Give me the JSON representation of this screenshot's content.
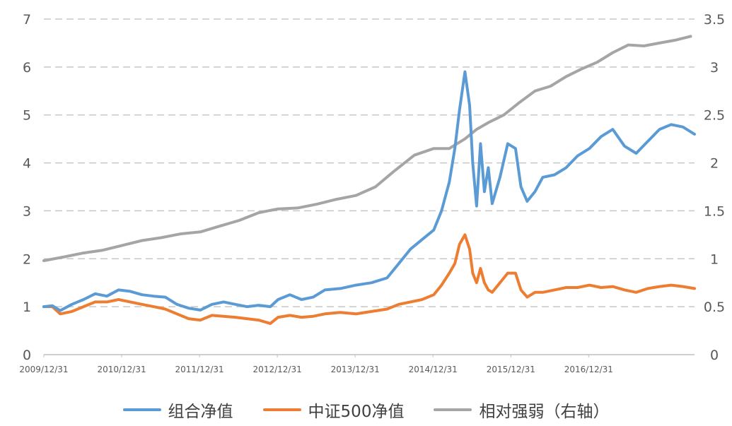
{
  "chart_data": {
    "type": "line",
    "x_tick_labels": [
      "2009/12/31",
      "2010/12/31",
      "2011/12/31",
      "2012/12/31",
      "2013/12/31",
      "2014/12/31",
      "2015/12/31",
      "2016/12/31"
    ],
    "y_left": {
      "min": 0,
      "max": 7,
      "ticks": [
        "0",
        "1",
        "2",
        "3",
        "4",
        "5",
        "6",
        "7"
      ]
    },
    "y_right": {
      "min": 0,
      "max": 3.5,
      "ticks": [
        "0",
        "0.5",
        "1",
        "1.5",
        "2",
        "2.5",
        "3",
        "3.5"
      ]
    },
    "grid": "horizontal dashed",
    "legend_position": "bottom",
    "series": [
      {
        "name": "组合净值",
        "axis": "left",
        "color": "#5B9BD5",
        "points": [
          [
            2009.99,
            1.0
          ],
          [
            2010.1,
            1.02
          ],
          [
            2010.2,
            0.92
          ],
          [
            2010.35,
            1.05
          ],
          [
            2010.5,
            1.15
          ],
          [
            2010.65,
            1.27
          ],
          [
            2010.8,
            1.22
          ],
          [
            2010.95,
            1.35
          ],
          [
            2011.1,
            1.32
          ],
          [
            2011.25,
            1.25
          ],
          [
            2011.4,
            1.22
          ],
          [
            2011.55,
            1.2
          ],
          [
            2011.7,
            1.05
          ],
          [
            2011.85,
            0.97
          ],
          [
            2012.0,
            0.93
          ],
          [
            2012.15,
            1.05
          ],
          [
            2012.3,
            1.1
          ],
          [
            2012.45,
            1.05
          ],
          [
            2012.6,
            1.0
          ],
          [
            2012.75,
            1.03
          ],
          [
            2012.9,
            1.0
          ],
          [
            2013.0,
            1.15
          ],
          [
            2013.15,
            1.25
          ],
          [
            2013.3,
            1.15
          ],
          [
            2013.45,
            1.2
          ],
          [
            2013.6,
            1.35
          ],
          [
            2013.8,
            1.38
          ],
          [
            2014.0,
            1.45
          ],
          [
            2014.2,
            1.5
          ],
          [
            2014.4,
            1.6
          ],
          [
            2014.55,
            1.9
          ],
          [
            2014.7,
            2.2
          ],
          [
            2014.85,
            2.4
          ],
          [
            2015.0,
            2.6
          ],
          [
            2015.1,
            3.0
          ],
          [
            2015.2,
            3.6
          ],
          [
            2015.27,
            4.3
          ],
          [
            2015.33,
            5.1
          ],
          [
            2015.4,
            5.9
          ],
          [
            2015.46,
            5.2
          ],
          [
            2015.5,
            4.0
          ],
          [
            2015.55,
            3.1
          ],
          [
            2015.6,
            4.4
          ],
          [
            2015.65,
            3.4
          ],
          [
            2015.7,
            3.9
          ],
          [
            2015.75,
            3.15
          ],
          [
            2015.85,
            3.7
          ],
          [
            2015.95,
            4.4
          ],
          [
            2016.05,
            4.3
          ],
          [
            2016.12,
            3.5
          ],
          [
            2016.2,
            3.2
          ],
          [
            2016.3,
            3.4
          ],
          [
            2016.4,
            3.7
          ],
          [
            2016.55,
            3.75
          ],
          [
            2016.7,
            3.9
          ],
          [
            2016.85,
            4.15
          ],
          [
            2017.0,
            4.3
          ],
          [
            2017.15,
            4.55
          ],
          [
            2017.3,
            4.7
          ],
          [
            2017.45,
            4.35
          ],
          [
            2017.6,
            4.2
          ],
          [
            2017.75,
            4.45
          ],
          [
            2017.9,
            4.7
          ],
          [
            2018.05,
            4.8
          ],
          [
            2018.2,
            4.75
          ],
          [
            2018.35,
            4.6
          ]
        ]
      },
      {
        "name": "中证500净值",
        "axis": "left",
        "color": "#ED7D31",
        "points": [
          [
            2009.99,
            1.0
          ],
          [
            2010.1,
            1.0
          ],
          [
            2010.2,
            0.85
          ],
          [
            2010.35,
            0.9
          ],
          [
            2010.5,
            1.0
          ],
          [
            2010.65,
            1.1
          ],
          [
            2010.8,
            1.1
          ],
          [
            2010.95,
            1.15
          ],
          [
            2011.1,
            1.1
          ],
          [
            2011.25,
            1.05
          ],
          [
            2011.4,
            1.0
          ],
          [
            2011.55,
            0.95
          ],
          [
            2011.7,
            0.85
          ],
          [
            2011.85,
            0.75
          ],
          [
            2012.0,
            0.72
          ],
          [
            2012.15,
            0.82
          ],
          [
            2012.3,
            0.8
          ],
          [
            2012.45,
            0.78
          ],
          [
            2012.6,
            0.75
          ],
          [
            2012.75,
            0.72
          ],
          [
            2012.9,
            0.65
          ],
          [
            2013.0,
            0.78
          ],
          [
            2013.15,
            0.82
          ],
          [
            2013.3,
            0.78
          ],
          [
            2013.45,
            0.8
          ],
          [
            2013.6,
            0.85
          ],
          [
            2013.8,
            0.88
          ],
          [
            2014.0,
            0.85
          ],
          [
            2014.2,
            0.9
          ],
          [
            2014.4,
            0.95
          ],
          [
            2014.55,
            1.05
          ],
          [
            2014.7,
            1.1
          ],
          [
            2014.85,
            1.15
          ],
          [
            2015.0,
            1.25
          ],
          [
            2015.1,
            1.45
          ],
          [
            2015.2,
            1.7
          ],
          [
            2015.27,
            1.9
          ],
          [
            2015.33,
            2.3
          ],
          [
            2015.4,
            2.5
          ],
          [
            2015.46,
            2.2
          ],
          [
            2015.5,
            1.7
          ],
          [
            2015.55,
            1.5
          ],
          [
            2015.6,
            1.8
          ],
          [
            2015.65,
            1.5
          ],
          [
            2015.7,
            1.35
          ],
          [
            2015.75,
            1.3
          ],
          [
            2015.85,
            1.5
          ],
          [
            2015.95,
            1.7
          ],
          [
            2016.05,
            1.7
          ],
          [
            2016.12,
            1.35
          ],
          [
            2016.2,
            1.2
          ],
          [
            2016.3,
            1.3
          ],
          [
            2016.4,
            1.3
          ],
          [
            2016.55,
            1.35
          ],
          [
            2016.7,
            1.4
          ],
          [
            2016.85,
            1.4
          ],
          [
            2017.0,
            1.45
          ],
          [
            2017.15,
            1.4
          ],
          [
            2017.3,
            1.42
          ],
          [
            2017.45,
            1.35
          ],
          [
            2017.6,
            1.3
          ],
          [
            2017.75,
            1.38
          ],
          [
            2017.9,
            1.42
          ],
          [
            2018.05,
            1.45
          ],
          [
            2018.2,
            1.42
          ],
          [
            2018.35,
            1.38
          ]
        ]
      },
      {
        "name": "相对强弱（右轴）",
        "axis": "right",
        "color": "#A5A5A5",
        "points": [
          [
            2009.99,
            0.98
          ],
          [
            2010.25,
            1.02
          ],
          [
            2010.5,
            1.06
          ],
          [
            2010.75,
            1.09
          ],
          [
            2011.0,
            1.14
          ],
          [
            2011.25,
            1.19
          ],
          [
            2011.5,
            1.22
          ],
          [
            2011.75,
            1.26
          ],
          [
            2012.0,
            1.28
          ],
          [
            2012.25,
            1.34
          ],
          [
            2012.5,
            1.4
          ],
          [
            2012.75,
            1.48
          ],
          [
            2013.0,
            1.52
          ],
          [
            2013.25,
            1.53
          ],
          [
            2013.5,
            1.57
          ],
          [
            2013.75,
            1.62
          ],
          [
            2014.0,
            1.66
          ],
          [
            2014.25,
            1.75
          ],
          [
            2014.5,
            1.92
          ],
          [
            2014.75,
            2.08
          ],
          [
            2015.0,
            2.15
          ],
          [
            2015.2,
            2.15
          ],
          [
            2015.4,
            2.25
          ],
          [
            2015.55,
            2.35
          ],
          [
            2015.7,
            2.42
          ],
          [
            2015.9,
            2.5
          ],
          [
            2016.1,
            2.63
          ],
          [
            2016.3,
            2.75
          ],
          [
            2016.5,
            2.8
          ],
          [
            2016.7,
            2.9
          ],
          [
            2016.9,
            2.98
          ],
          [
            2017.1,
            3.05
          ],
          [
            2017.3,
            3.15
          ],
          [
            2017.5,
            3.23
          ],
          [
            2017.7,
            3.22
          ],
          [
            2017.9,
            3.25
          ],
          [
            2018.1,
            3.28
          ],
          [
            2018.3,
            3.32
          ]
        ]
      }
    ]
  }
}
